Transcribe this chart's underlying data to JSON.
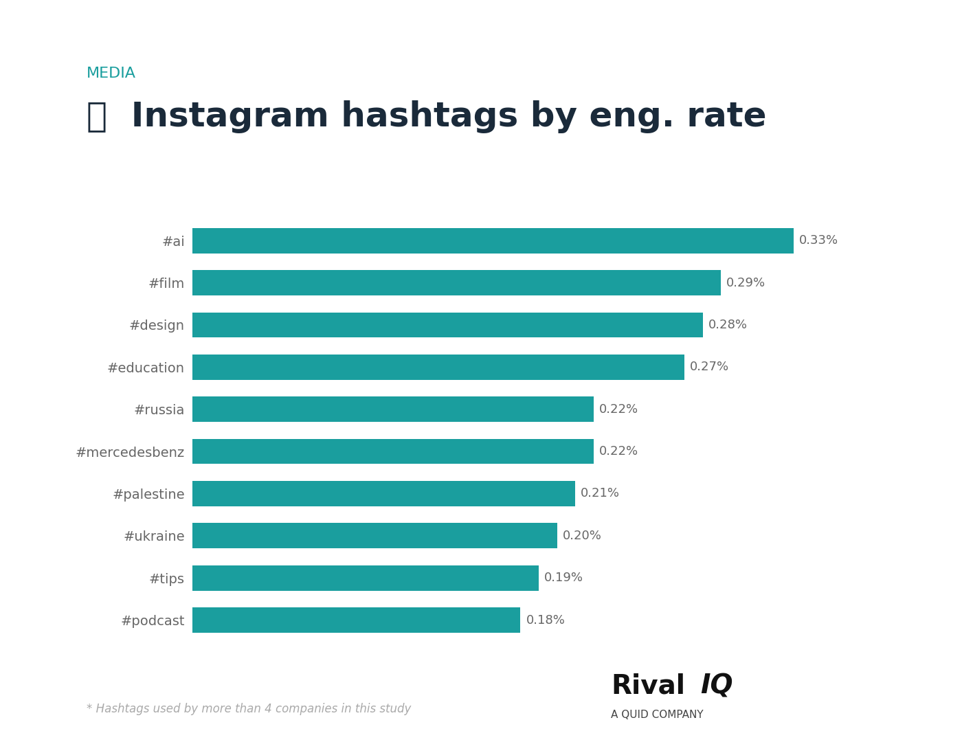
{
  "labels": [
    "#podcast",
    "#tips",
    "#ukraine",
    "#palestine",
    "#mercedesbenz",
    "#russia",
    "#education",
    "#design",
    "#film",
    "#ai"
  ],
  "values": [
    0.18,
    0.19,
    0.2,
    0.21,
    0.22,
    0.22,
    0.27,
    0.28,
    0.29,
    0.33
  ],
  "value_labels": [
    "0.18%",
    "0.19%",
    "0.20%",
    "0.21%",
    "0.22%",
    "0.22%",
    "0.27%",
    "0.28%",
    "0.29%",
    "0.33%"
  ],
  "bar_color": "#1a9e9e",
  "background_color": "#ffffff",
  "title": "Instagram hashtags by eng. rate",
  "subtitle": "MEDIA",
  "subtitle_color": "#1a9e9e",
  "title_color": "#1a2a3a",
  "label_color": "#666666",
  "value_color": "#666666",
  "top_bar_color": "#1a9e9e",
  "footnote": "* Hashtags used by more than 4 companies in this study",
  "footnote_color": "#aaaaaa",
  "xlim": [
    0,
    0.38
  ]
}
